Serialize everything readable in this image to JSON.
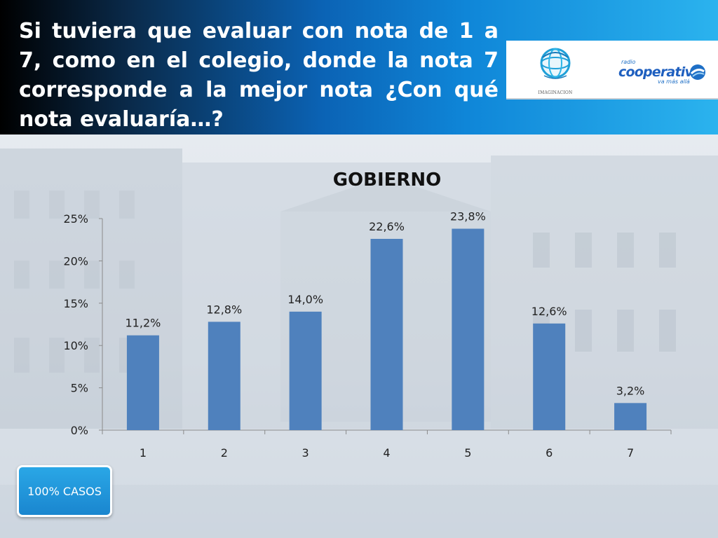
{
  "slide": {
    "title": "Si tuviera que evaluar con nota de 1 a 7, como en el colegio, donde la nota 7 corresponde a la mejor nota ¿Con qué nota evaluaría…?",
    "badge": "100% CASOS"
  },
  "logos": {
    "imaginacion": "IMAGINACION",
    "cooperativa_small": "radio",
    "cooperativa_main": "cooperativa",
    "cooperativa_tag": "va más allá"
  },
  "colors": {
    "bar": "#4f81bd",
    "header_start": "#000000",
    "header_end": "#2bb3ee",
    "badge": "#1f93d8"
  },
  "chart_data": {
    "type": "bar",
    "title": "GOBIERNO",
    "categories": [
      "1",
      "2",
      "3",
      "4",
      "5",
      "6",
      "7"
    ],
    "values": [
      11.2,
      12.8,
      14.0,
      22.6,
      23.8,
      12.6,
      3.2
    ],
    "data_labels": [
      "11,2%",
      "12,8%",
      "14,0%",
      "22,6%",
      "23,8%",
      "12,6%",
      "3,2%"
    ],
    "yticks": [
      "0%",
      "5%",
      "10%",
      "15%",
      "20%",
      "25%"
    ],
    "ytick_values": [
      0,
      5,
      10,
      15,
      20,
      25
    ],
    "ylim": [
      0,
      25
    ],
    "xlabel": "",
    "ylabel": "",
    "grid": false,
    "legend": "none"
  }
}
